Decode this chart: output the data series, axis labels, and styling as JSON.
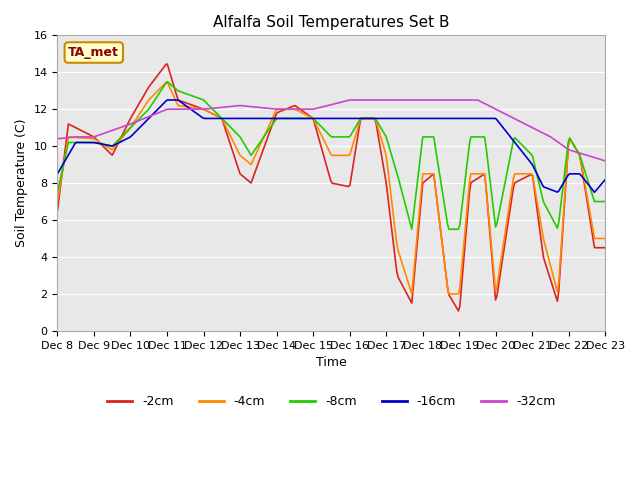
{
  "title": "Alfalfa Soil Temperatures Set B",
  "xlabel": "Time",
  "ylabel": "Soil Temperature (C)",
  "ylim": [
    0,
    16
  ],
  "yticks": [
    0,
    2,
    4,
    6,
    8,
    10,
    12,
    14,
    16
  ],
  "x_labels": [
    "Dec 8",
    "Dec 9",
    "Dec 10",
    "Dec 11",
    "Dec 12",
    "Dec 13",
    "Dec 14",
    "Dec 15",
    "Dec 16",
    "Dec 17",
    "Dec 18",
    "Dec 19",
    "Dec 20",
    "Dec 21",
    "Dec 22",
    "Dec 23"
  ],
  "background_color": "#e8e8e8",
  "annotation_text": "TA_met",
  "annotation_bg": "#ffffcc",
  "annotation_border": "#cc8800",
  "legend_labels": [
    "-2cm",
    "-4cm",
    "-8cm",
    "-16cm",
    "-32cm"
  ],
  "colors": {
    "-2cm": "#dd2222",
    "-4cm": "#ff8800",
    "-8cm": "#22cc00",
    "-16cm": "#0000cc",
    "-32cm": "#cc44cc"
  },
  "m2_times": [
    0,
    0.3,
    1,
    1.5,
    2,
    2.5,
    3,
    3.3,
    4,
    4.5,
    5,
    5.3,
    6,
    6.5,
    7,
    7.5,
    8,
    8.3,
    8.7,
    9,
    9.3,
    9.7,
    10,
    10.3,
    10.7,
    11,
    11.3,
    11.7,
    12,
    12.5,
    13,
    13.3,
    13.7,
    14,
    14.3,
    14.7,
    15
  ],
  "m2_vals": [
    6.5,
    11.2,
    10.5,
    9.5,
    11.5,
    13.2,
    14.5,
    12.5,
    12.0,
    11.5,
    8.5,
    8.0,
    11.8,
    12.2,
    11.5,
    8.0,
    7.8,
    11.5,
    11.5,
    8.0,
    3.0,
    1.5,
    8.0,
    8.5,
    2.0,
    1.0,
    8.0,
    8.5,
    1.5,
    8.0,
    8.5,
    4.0,
    1.5,
    10.5,
    9.5,
    4.5,
    4.5
  ],
  "m4_times": [
    0,
    0.3,
    1,
    1.5,
    2,
    2.5,
    3,
    3.3,
    4,
    4.5,
    5,
    5.3,
    6,
    6.5,
    7,
    7.5,
    8,
    8.3,
    8.7,
    9,
    9.3,
    9.7,
    10,
    10.3,
    10.7,
    11,
    11.3,
    11.7,
    12,
    12.5,
    13,
    13.3,
    13.7,
    14,
    14.3,
    14.7,
    15
  ],
  "m4_vals": [
    7.0,
    10.5,
    10.4,
    9.8,
    11.0,
    12.5,
    13.5,
    12.2,
    12.0,
    11.5,
    9.5,
    9.0,
    12.0,
    12.0,
    11.5,
    9.5,
    9.5,
    11.5,
    11.5,
    9.5,
    4.5,
    2.0,
    8.5,
    8.5,
    2.0,
    2.0,
    8.5,
    8.5,
    2.0,
    8.5,
    8.5,
    5.0,
    2.0,
    10.5,
    9.5,
    5.0,
    5.0
  ],
  "m8_times": [
    0,
    0.3,
    1,
    1.5,
    2,
    2.5,
    3,
    3.3,
    4,
    4.5,
    5,
    5.3,
    6,
    6.5,
    7,
    7.5,
    8,
    8.3,
    8.7,
    9,
    9.3,
    9.7,
    10,
    10.3,
    10.7,
    11,
    11.3,
    11.7,
    12,
    12.5,
    13,
    13.3,
    13.7,
    14,
    14.3,
    14.7,
    15
  ],
  "m8_vals": [
    7.5,
    10.2,
    10.2,
    10.0,
    11.0,
    12.0,
    13.5,
    13.0,
    12.5,
    11.5,
    10.5,
    9.5,
    11.5,
    11.5,
    11.5,
    10.5,
    10.5,
    11.5,
    11.5,
    10.5,
    8.5,
    5.5,
    10.5,
    10.5,
    5.5,
    5.5,
    10.5,
    10.5,
    5.5,
    10.5,
    9.5,
    7.0,
    5.5,
    10.5,
    9.5,
    7.0,
    7.0
  ],
  "m16_times": [
    0,
    0.5,
    1,
    1.5,
    2,
    2.5,
    3,
    3.3,
    4,
    5,
    6,
    7,
    7.5,
    8,
    8.5,
    9,
    9.5,
    10,
    10.5,
    11,
    11.5,
    12,
    13,
    13.3,
    13.7,
    14,
    14.3,
    14.7,
    15
  ],
  "m16_vals": [
    8.5,
    10.2,
    10.2,
    10.0,
    10.5,
    11.5,
    12.5,
    12.5,
    11.5,
    11.5,
    11.5,
    11.5,
    11.5,
    11.5,
    11.5,
    11.5,
    11.5,
    11.5,
    11.5,
    11.5,
    11.5,
    11.5,
    9.0,
    7.8,
    7.5,
    8.5,
    8.5,
    7.5,
    8.2
  ],
  "m32_times": [
    0,
    0.5,
    1,
    2,
    3,
    4,
    5,
    6,
    7,
    8,
    8.5,
    9,
    9.5,
    10,
    10.5,
    11,
    11.5,
    12,
    12.5,
    13,
    13.5,
    14,
    14.5,
    15
  ],
  "m32_vals": [
    10.4,
    10.5,
    10.5,
    11.2,
    12.0,
    12.0,
    12.2,
    12.0,
    12.0,
    12.5,
    12.5,
    12.5,
    12.5,
    12.5,
    12.5,
    12.5,
    12.5,
    12.0,
    11.5,
    11.0,
    10.5,
    9.8,
    9.5,
    9.2
  ]
}
